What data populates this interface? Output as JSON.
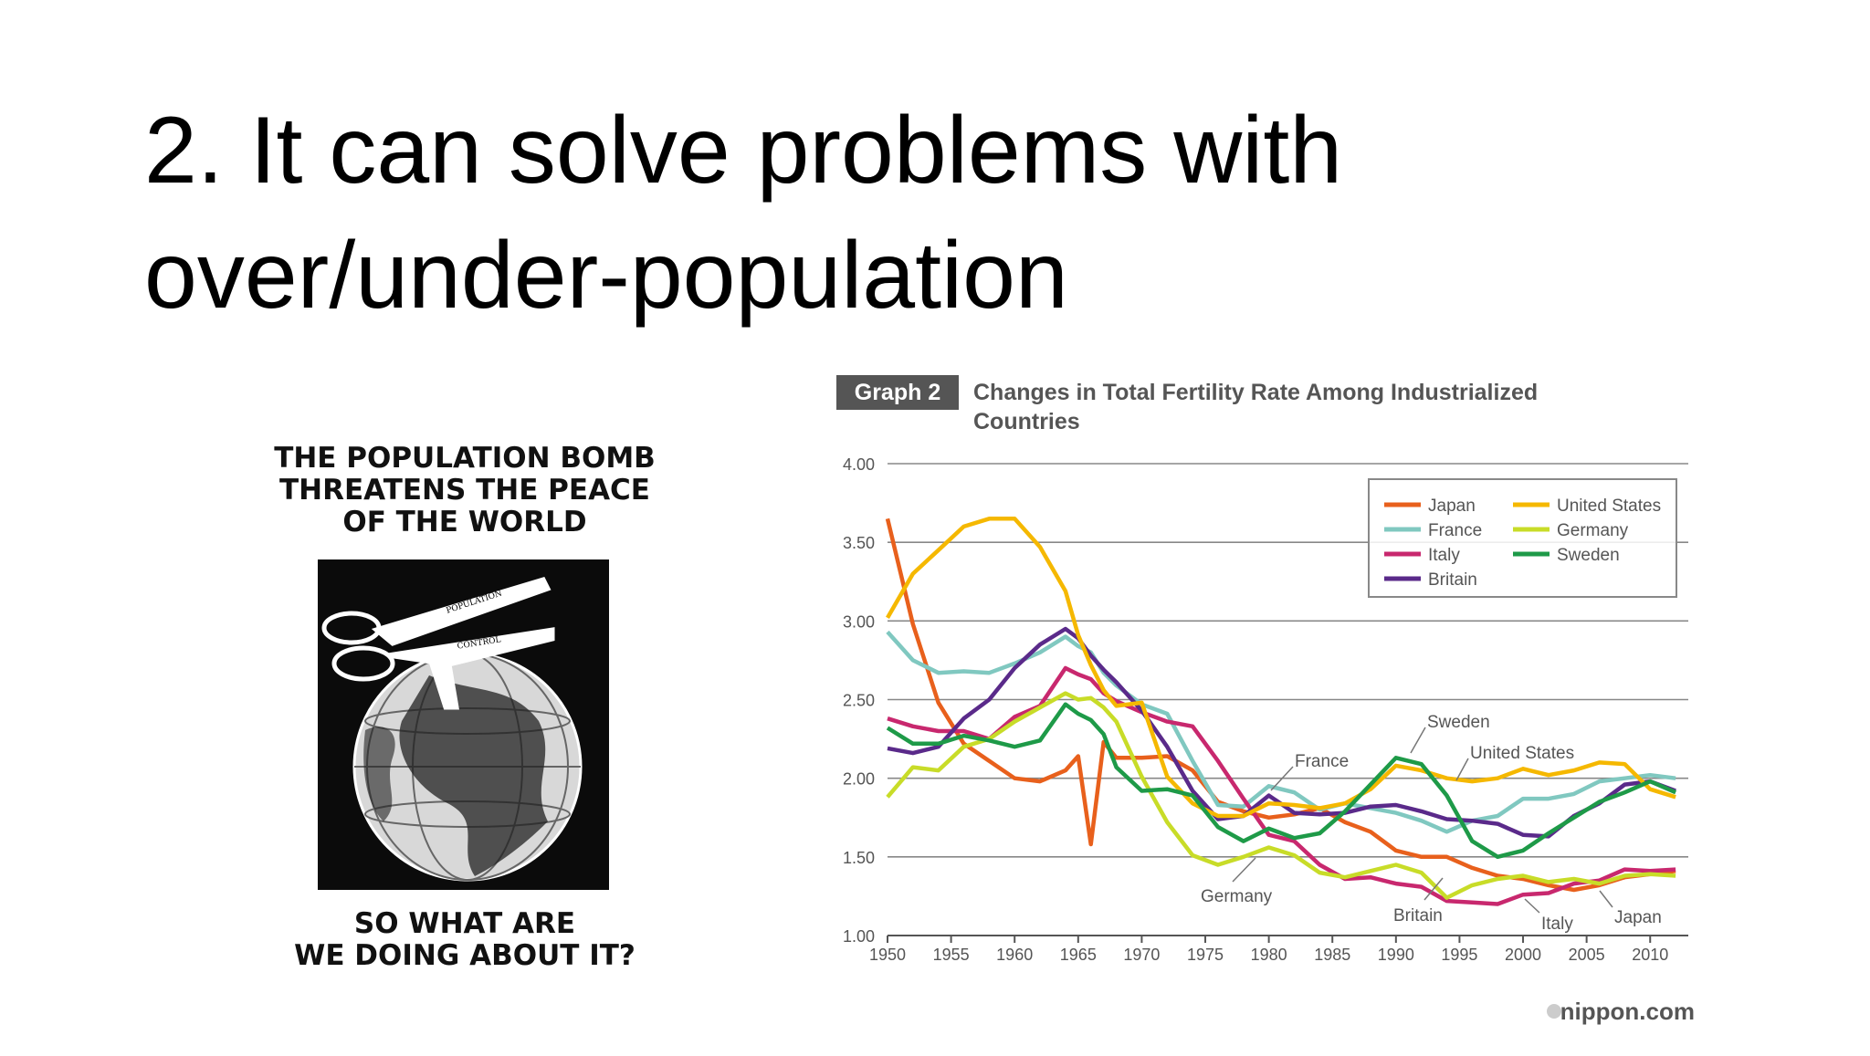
{
  "slide": {
    "title_lines": [
      "2. It can solve problems with",
      "over/under-population"
    ]
  },
  "poster": {
    "headline": [
      "THE POPULATION BOMB",
      "THREATENS THE PEACE",
      "OF THE WORLD"
    ],
    "scissors_labels": [
      "POPULATION",
      "CONTROL"
    ],
    "footer": [
      "SO WHAT ARE",
      "WE DOING ABOUT IT?"
    ]
  },
  "chart_data": {
    "type": "line",
    "badge": "Graph 2",
    "title_lines": [
      "Changes in Total Fertility Rate Among Industrialized",
      "Countries"
    ],
    "source": "nippon.com",
    "x": [
      1950,
      1952,
      1954,
      1956,
      1958,
      1960,
      1962,
      1964,
      1965,
      1966,
      1967,
      1968,
      1970,
      1972,
      1974,
      1976,
      1978,
      1980,
      1982,
      1984,
      1986,
      1988,
      1990,
      1992,
      1994,
      1996,
      1998,
      2000,
      2002,
      2004,
      2006,
      2008,
      2010,
      2012
    ],
    "xlim": [
      1950,
      2013
    ],
    "xticks": [
      1950,
      1955,
      1960,
      1965,
      1970,
      1975,
      1980,
      1985,
      1990,
      1995,
      2000,
      2005,
      2010
    ],
    "ylim": [
      1,
      4
    ],
    "yticks": [
      {
        "value": 1,
        "label": "1.00"
      },
      {
        "value": 1.5,
        "label": "1.50"
      },
      {
        "value": 2,
        "label": "2.00"
      },
      {
        "value": 2.5,
        "label": "2.50"
      },
      {
        "value": 3,
        "label": "3.00"
      },
      {
        "value": 3.5,
        "label": "3.50"
      },
      {
        "value": 4,
        "label": "4.00"
      }
    ],
    "grid": true,
    "legend": "upper right",
    "series": [
      {
        "name": "Japan",
        "color": "#e8601c",
        "values": [
          3.65,
          2.98,
          2.48,
          2.22,
          2.11,
          2.0,
          1.98,
          2.05,
          2.14,
          1.58,
          2.23,
          2.13,
          2.13,
          2.14,
          2.05,
          1.85,
          1.79,
          1.75,
          1.77,
          1.81,
          1.72,
          1.66,
          1.54,
          1.5,
          1.5,
          1.43,
          1.38,
          1.36,
          1.32,
          1.29,
          1.32,
          1.37,
          1.39,
          1.41
        ]
      },
      {
        "name": "France",
        "color": "#80c8c0",
        "values": [
          2.93,
          2.75,
          2.67,
          2.68,
          2.67,
          2.73,
          2.8,
          2.9,
          2.84,
          2.8,
          2.67,
          2.59,
          2.47,
          2.41,
          2.11,
          1.83,
          1.82,
          1.95,
          1.91,
          1.8,
          1.84,
          1.81,
          1.78,
          1.73,
          1.66,
          1.73,
          1.76,
          1.87,
          1.87,
          1.9,
          1.98,
          2.0,
          2.02,
          2.0
        ]
      },
      {
        "name": "Italy",
        "color": "#c8286e",
        "values": [
          2.38,
          2.33,
          2.3,
          2.3,
          2.25,
          2.39,
          2.46,
          2.7,
          2.66,
          2.63,
          2.54,
          2.49,
          2.42,
          2.36,
          2.33,
          2.11,
          1.87,
          1.64,
          1.6,
          1.45,
          1.36,
          1.37,
          1.33,
          1.31,
          1.22,
          1.21,
          1.2,
          1.26,
          1.27,
          1.33,
          1.35,
          1.42,
          1.41,
          1.42
        ]
      },
      {
        "name": "Britain",
        "color": "#5a2a8a",
        "values": [
          2.19,
          2.16,
          2.2,
          2.38,
          2.5,
          2.7,
          2.85,
          2.95,
          2.89,
          2.78,
          2.69,
          2.61,
          2.43,
          2.2,
          1.92,
          1.74,
          1.76,
          1.89,
          1.78,
          1.77,
          1.78,
          1.82,
          1.83,
          1.79,
          1.74,
          1.73,
          1.71,
          1.64,
          1.63,
          1.76,
          1.84,
          1.96,
          1.98,
          1.92
        ]
      },
      {
        "name": "United States",
        "color": "#f5b800",
        "values": [
          3.02,
          3.3,
          3.45,
          3.6,
          3.65,
          3.65,
          3.47,
          3.19,
          2.91,
          2.72,
          2.56,
          2.46,
          2.48,
          2.01,
          1.84,
          1.76,
          1.76,
          1.84,
          1.83,
          1.81,
          1.84,
          1.93,
          2.08,
          2.05,
          2.0,
          1.98,
          2.0,
          2.06,
          2.02,
          2.05,
          2.1,
          2.09,
          1.93,
          1.88
        ]
      },
      {
        "name": "Germany",
        "color": "#c8dc28",
        "values": [
          1.88,
          2.07,
          2.05,
          2.2,
          2.25,
          2.36,
          2.45,
          2.54,
          2.5,
          2.51,
          2.45,
          2.36,
          2.01,
          1.72,
          1.51,
          1.45,
          1.5,
          1.56,
          1.51,
          1.4,
          1.37,
          1.41,
          1.45,
          1.4,
          1.24,
          1.32,
          1.36,
          1.38,
          1.34,
          1.36,
          1.33,
          1.38,
          1.39,
          1.38
        ]
      },
      {
        "name": "Sweden",
        "color": "#1e9a48",
        "values": [
          2.32,
          2.22,
          2.22,
          2.27,
          2.24,
          2.2,
          2.24,
          2.47,
          2.41,
          2.37,
          2.28,
          2.07,
          1.92,
          1.93,
          1.89,
          1.69,
          1.6,
          1.68,
          1.62,
          1.65,
          1.79,
          1.96,
          2.13,
          2.09,
          1.89,
          1.6,
          1.5,
          1.54,
          1.65,
          1.75,
          1.85,
          1.91,
          1.98,
          1.91
        ]
      }
    ],
    "annotations": [
      "France",
      "Sweden",
      "United States",
      "Germany",
      "Britain",
      "Italy",
      "Japan"
    ]
  }
}
